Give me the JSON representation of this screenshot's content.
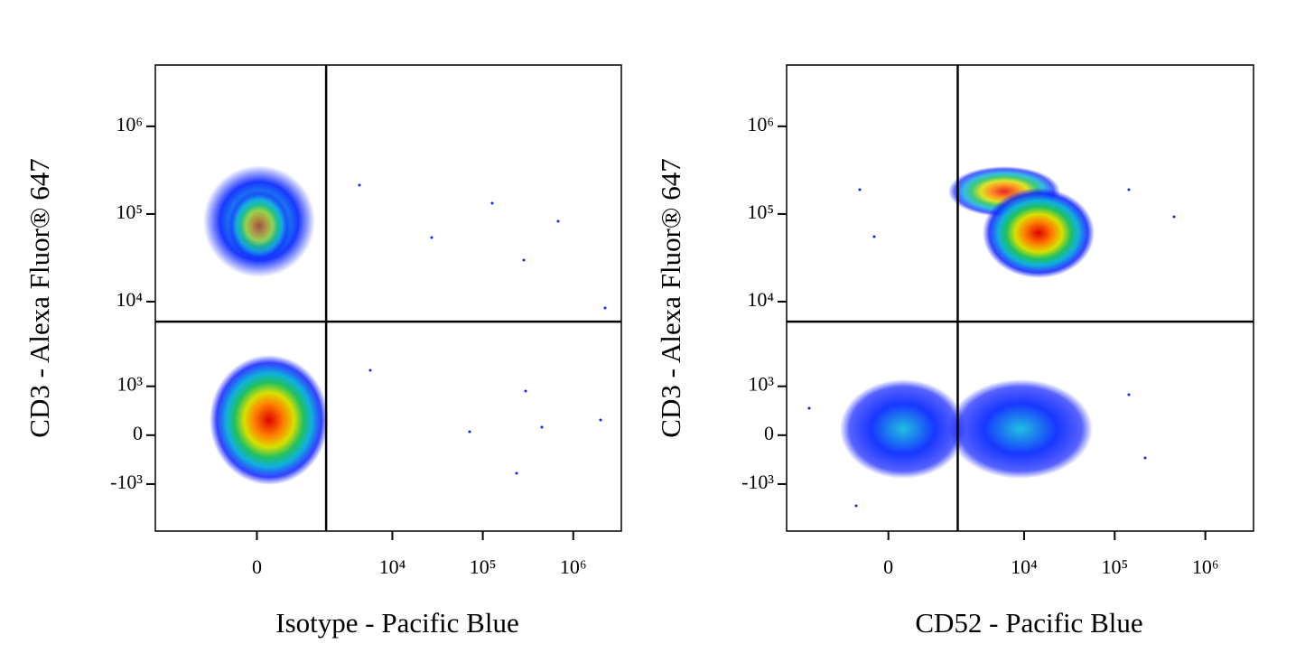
{
  "chart_data": [
    {
      "type": "scatter",
      "x_label": "Isotype - Pacific Blue",
      "y_label": "CD3 - Alexa Fluor® 647",
      "xlim": [
        -4200,
        3400000
      ],
      "ylim": [
        -3700,
        5000000
      ],
      "xticks": [
        0,
        {
          "value": 10000,
          "label": "10⁴"
        },
        {
          "value": 100000,
          "label": "10⁵"
        },
        {
          "value": 1000000,
          "label": "10⁶"
        }
      ],
      "yticks": [
        {
          "value": 1000000,
          "label": "10⁶"
        },
        {
          "value": 100000,
          "label": "10⁵"
        },
        {
          "value": 10000,
          "label": "10⁴"
        },
        {
          "value": 1000,
          "label": "10³"
        },
        0,
        {
          "value": -1000,
          "label": "-10³"
        }
      ],
      "gate": {
        "x": 1800,
        "y": 5900
      }
    },
    {
      "type": "scatter",
      "x_label": "CD52 - Pacific Blue",
      "y_label": "CD3 - Alexa Fluor® 647",
      "xlim": [
        -4200,
        3400000
      ],
      "ylim": [
        -3700,
        5000000
      ],
      "xticks": [
        0,
        {
          "value": 10000,
          "label": "10⁴"
        },
        {
          "value": 100000,
          "label": "10⁵"
        },
        {
          "value": 1000000,
          "label": "10⁶"
        }
      ],
      "yticks": [
        {
          "value": 1000000,
          "label": "10⁶"
        },
        {
          "value": 100000,
          "label": "10⁵"
        },
        {
          "value": 10000,
          "label": "10⁴"
        },
        {
          "value": 1000,
          "label": "10³"
        },
        0,
        {
          "value": -1000,
          "label": "-10³"
        }
      ],
      "gate": {
        "x": 1800,
        "y": 5900
      }
    }
  ]
}
